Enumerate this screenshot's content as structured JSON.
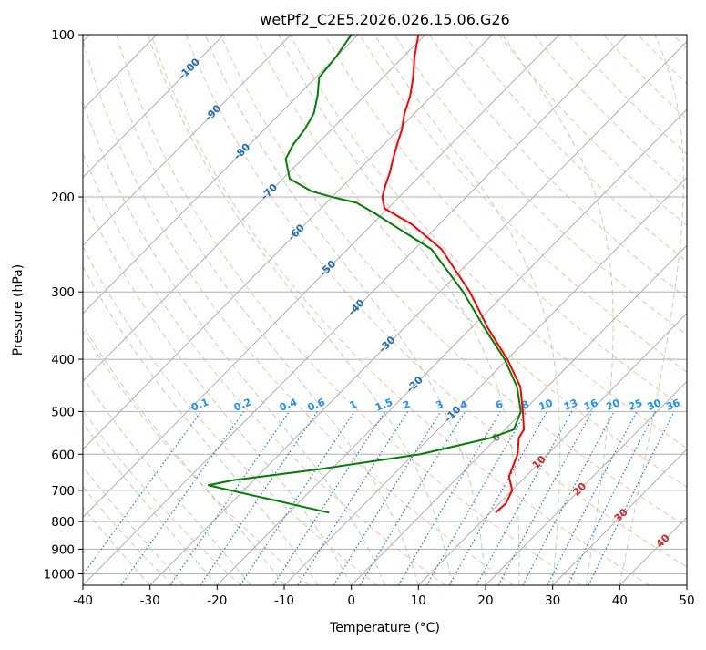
{
  "chart_data": {
    "type": "line",
    "chart_kind": "skew-T log-P diagram",
    "title": "wetPf2_C2E5.2026.026.15.06.G26",
    "xlabel": "Temperature (°C)",
    "ylabel": "Pressure (hPa)",
    "xlim": [
      -40,
      50
    ],
    "ylim": [
      1050,
      100
    ],
    "x_ticks": [
      "-40",
      "-30",
      "-20",
      "-10",
      "0",
      "10",
      "20",
      "30",
      "40",
      "50"
    ],
    "x_tick_values": [
      -40,
      -30,
      -20,
      -10,
      0,
      10,
      20,
      30,
      40,
      50
    ],
    "y_ticks": [
      "100",
      "200",
      "300",
      "400",
      "500",
      "600",
      "700",
      "800",
      "900",
      "1000"
    ],
    "y_tick_values": [
      100,
      200,
      300,
      400,
      500,
      600,
      700,
      800,
      900,
      1000
    ],
    "grid": true,
    "series": [
      {
        "name": "Temperature",
        "color": "#ff0000",
        "points": [
          [
            770,
            10.8
          ],
          [
            740,
            11.0
          ],
          [
            700,
            10.0
          ],
          [
            660,
            7.5
          ],
          [
            600,
            5.5
          ],
          [
            560,
            3.3
          ],
          [
            540,
            2.8
          ],
          [
            500,
            0.0
          ],
          [
            450,
            -4.0
          ],
          [
            400,
            -10.0
          ],
          [
            350,
            -17.5
          ],
          [
            300,
            -25.5
          ],
          [
            250,
            -36.0
          ],
          [
            225,
            -44.0
          ],
          [
            210,
            -50.5
          ],
          [
            200,
            -52.5
          ],
          [
            190,
            -53.8
          ],
          [
            180,
            -55.0
          ],
          [
            170,
            -56.5
          ],
          [
            160,
            -58.0
          ],
          [
            150,
            -59.5
          ],
          [
            140,
            -61.5
          ],
          [
            130,
            -63.2
          ],
          [
            120,
            -65.5
          ],
          [
            110,
            -68.3
          ],
          [
            100,
            -71.0
          ]
        ]
      },
      {
        "name": "Dewpoint",
        "color": "#008000",
        "points": [
          [
            770,
            -14.0
          ],
          [
            750,
            -19.0
          ],
          [
            730,
            -24.0
          ],
          [
            715,
            -28.0
          ],
          [
            700,
            -32.0
          ],
          [
            685,
            -36.0
          ],
          [
            670,
            -33.0
          ],
          [
            640,
            -22.0
          ],
          [
            600,
            -9.0
          ],
          [
            560,
            -1.0
          ],
          [
            540,
            1.3
          ],
          [
            500,
            -0.3
          ],
          [
            450,
            -4.5
          ],
          [
            400,
            -10.4
          ],
          [
            350,
            -18.0
          ],
          [
            300,
            -26.5
          ],
          [
            250,
            -37.5
          ],
          [
            230,
            -45.0
          ],
          [
            215,
            -51.0
          ],
          [
            205,
            -55.5
          ],
          [
            200,
            -60.0
          ],
          [
            195,
            -64.0
          ],
          [
            185,
            -69.0
          ],
          [
            170,
            -72.5
          ],
          [
            160,
            -73.5
          ],
          [
            150,
            -74.0
          ],
          [
            140,
            -75.0
          ],
          [
            130,
            -77.0
          ],
          [
            120,
            -79.5
          ],
          [
            110,
            -80.0
          ],
          [
            100,
            -81.0
          ]
        ]
      }
    ],
    "dry_adiabat_labels": [
      "-100",
      "-90",
      "-80",
      "-70",
      "-60",
      "-50",
      "-40",
      "-30",
      "-20",
      "-10",
      "0",
      "10",
      "20",
      "30",
      "40"
    ],
    "dry_adiabat_values": [
      -100,
      -90,
      -80,
      -70,
      -60,
      -50,
      -40,
      -30,
      -20,
      -10,
      0,
      10,
      20,
      30,
      40
    ],
    "mixing_ratio_labels": [
      "0.1",
      "0.2",
      "0.4",
      "0.6",
      "1",
      "1.5",
      "2",
      "3",
      "4",
      "6",
      "8",
      "10",
      "13",
      "16",
      "20",
      "25",
      "30",
      "36"
    ],
    "mixing_ratio_values": [
      0.1,
      0.2,
      0.4,
      0.6,
      1,
      1.5,
      2,
      3,
      4,
      6,
      8,
      10,
      13,
      16,
      20,
      25,
      30,
      36
    ],
    "colors": {
      "isobar": "#b0b0b0",
      "isotherm": "#b0b0b0",
      "dry_adiabat": "#f4a582",
      "moist_adiabat": "#7fbf7f",
      "mixing_ratio": "#1e78d4",
      "dry_label_blue": "#1f6fb4",
      "dry_label_red": "#d62728",
      "dry_label_zero": "#808080",
      "mix_label": "#1e90ff",
      "temperature": "#ff0000",
      "dewpoint": "#008000"
    }
  }
}
